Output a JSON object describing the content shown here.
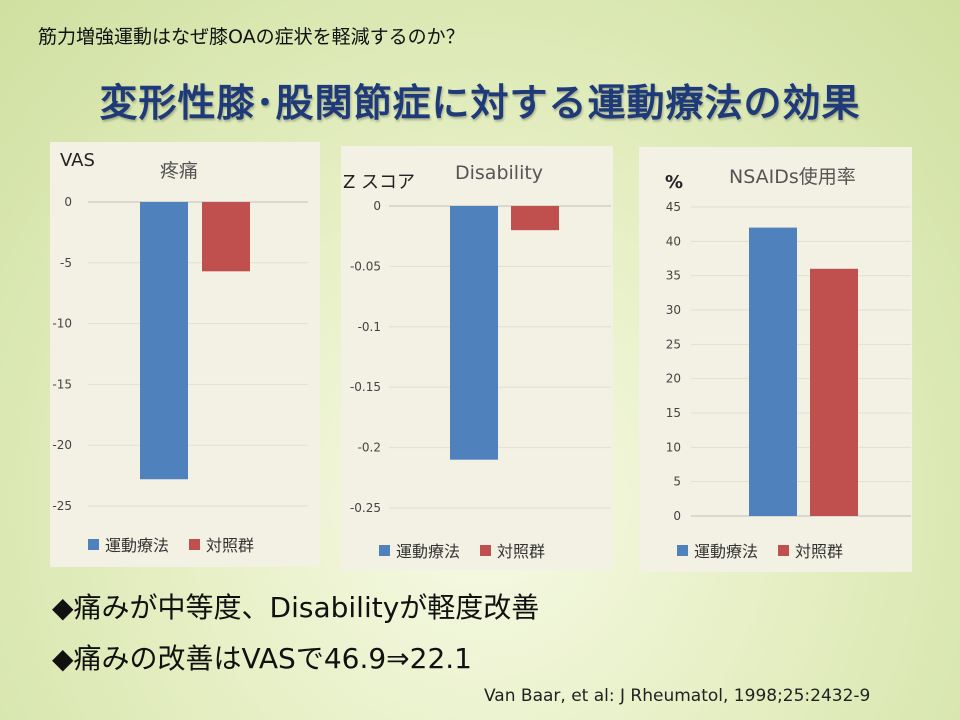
{
  "slide": {
    "subtitle": "筋力増強運動はなぜ膝OAの症状を軽減するのか？",
    "title": "変形性膝･股関節症に対する運動療法の効果",
    "bullets": [
      "◆痛みが中等度、Disabilityが軽度改善",
      "◆痛みの改善はVASで46.9⇒22.1"
    ],
    "citation": "Van Baar, et al: J Rheumatol, 1998;25:2432-9"
  },
  "colors": {
    "exercise": "#4f81bd",
    "control": "#c0504d"
  },
  "chart_data": [
    {
      "type": "bar",
      "title": "疼痛",
      "ylabel": "VAS",
      "categories": [
        "運動療法",
        "対照群"
      ],
      "values": [
        -22.8,
        -5.7
      ],
      "ylim": [
        -25,
        0
      ],
      "ticks": [
        "0",
        "-5",
        "-10",
        "-15",
        "-20",
        "-25"
      ],
      "legend": [
        "運動療法",
        "対照群"
      ]
    },
    {
      "type": "bar",
      "title": "Disability",
      "ylabel": "Z スコア",
      "categories": [
        "運動療法",
        "対照群"
      ],
      "values": [
        -0.21,
        -0.02
      ],
      "ylim": [
        -0.25,
        0
      ],
      "ticks": [
        "0",
        "-0.05",
        "-0.1",
        "-0.15",
        "-0.2",
        "-0.25"
      ],
      "legend": [
        "運動療法",
        "対照群"
      ]
    },
    {
      "type": "bar",
      "title": "NSAIDs使用率",
      "ylabel": "%",
      "categories": [
        "運動療法",
        "対照群"
      ],
      "values": [
        42,
        36
      ],
      "ylim": [
        0,
        45
      ],
      "ticks": [
        "45",
        "40",
        "35",
        "30",
        "25",
        "20",
        "15",
        "10",
        "5",
        "0"
      ],
      "legend": [
        "運動療法",
        "対照群"
      ]
    }
  ]
}
